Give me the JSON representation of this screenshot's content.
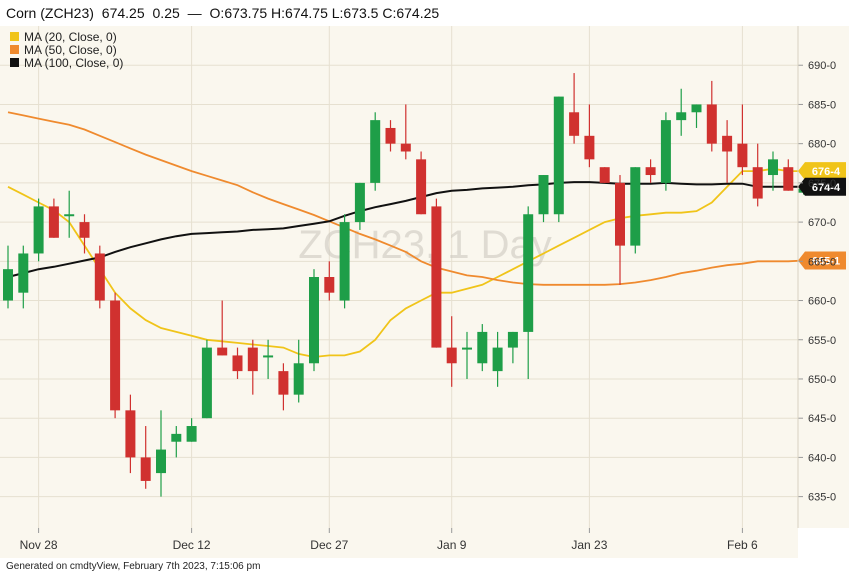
{
  "header": {
    "symbol": "Corn (ZCH23)",
    "last": "674.25",
    "change": "0.25",
    "separator": "—",
    "ohlc": "O:673.75 H:674.75 L:673.5 C:674.25"
  },
  "footer": {
    "generated": "Generated on cmdtyView, February 7th 2023, 7:15:06 pm"
  },
  "watermark": "ZCH23, 1 Day",
  "colors": {
    "plot_bg": "#faf7ee",
    "up": "#1e9e48",
    "down": "#d0312f",
    "ma20": "#f0c419",
    "ma50": "#ef8a2e",
    "ma100": "#111111",
    "grid": "#e6e0d0"
  },
  "chart_data": {
    "type": "candlestick",
    "title": "Corn (ZCH23)",
    "ylim": [
      631,
      695
    ],
    "y_ticks": [
      635,
      640,
      645,
      650,
      655,
      660,
      665,
      670,
      675,
      680,
      685,
      690
    ],
    "y_tick_labels": [
      "635-0",
      "640-0",
      "645-0",
      "650-0",
      "655-0",
      "660-0",
      "665-0",
      "670-0",
      "675-0",
      "680-0",
      "685-0",
      "690-0"
    ],
    "x_ticks": [
      {
        "label": "Nov 28",
        "index": 2
      },
      {
        "label": "Dec 12",
        "index": 12
      },
      {
        "label": "Dec 27",
        "index": 21
      },
      {
        "label": "Jan 9",
        "index": 29
      },
      {
        "label": "Jan 23",
        "index": 38
      },
      {
        "label": "Feb 6",
        "index": 48
      }
    ],
    "grid": true,
    "legend_placement": "top-left",
    "legend": [
      {
        "label": "MA (20, Close, 0)",
        "color": "#f0c419"
      },
      {
        "label": "MA (50, Close, 0)",
        "color": "#ef8a2e"
      },
      {
        "label": "MA (100, Close, 0)",
        "color": "#111111"
      }
    ],
    "price_tags": [
      {
        "label": "676-4",
        "value": 676.5,
        "color": "#f0c419"
      },
      {
        "label": "674-4",
        "value": 674.5,
        "color": "#111111"
      },
      {
        "label": "665-1",
        "value": 665.1,
        "color": "#ef8a2e"
      }
    ],
    "candles": [
      {
        "o": 660,
        "h": 667,
        "l": 659,
        "c": 664
      },
      {
        "o": 661,
        "h": 667,
        "l": 659,
        "c": 666
      },
      {
        "o": 666,
        "h": 673,
        "l": 665,
        "c": 672
      },
      {
        "o": 672,
        "h": 673,
        "l": 668,
        "c": 668
      },
      {
        "o": 671,
        "h": 674,
        "l": 668,
        "c": 671
      },
      {
        "o": 670,
        "h": 671,
        "l": 666,
        "c": 668
      },
      {
        "o": 666,
        "h": 667,
        "l": 659,
        "c": 660
      },
      {
        "o": 660,
        "h": 661,
        "l": 645,
        "c": 646
      },
      {
        "o": 646,
        "h": 648,
        "l": 638,
        "c": 640
      },
      {
        "o": 640,
        "h": 644,
        "l": 636,
        "c": 637
      },
      {
        "o": 638,
        "h": 646,
        "l": 635,
        "c": 641
      },
      {
        "o": 642,
        "h": 644,
        "l": 640,
        "c": 643
      },
      {
        "o": 642,
        "h": 645,
        "l": 642,
        "c": 644
      },
      {
        "o": 645,
        "h": 655,
        "l": 645,
        "c": 654
      },
      {
        "o": 654,
        "h": 660,
        "l": 653,
        "c": 653
      },
      {
        "o": 653,
        "h": 654,
        "l": 650,
        "c": 651
      },
      {
        "o": 654,
        "h": 655,
        "l": 648,
        "c": 651
      },
      {
        "o": 653,
        "h": 655,
        "l": 650,
        "c": 653
      },
      {
        "o": 651,
        "h": 652,
        "l": 646,
        "c": 648
      },
      {
        "o": 648,
        "h": 655,
        "l": 647,
        "c": 652
      },
      {
        "o": 652,
        "h": 664,
        "l": 651,
        "c": 663
      },
      {
        "o": 663,
        "h": 665,
        "l": 660,
        "c": 661
      },
      {
        "o": 660,
        "h": 671,
        "l": 659,
        "c": 670
      },
      {
        "o": 670,
        "h": 675,
        "l": 669,
        "c": 675
      },
      {
        "o": 675,
        "h": 684,
        "l": 674,
        "c": 683
      },
      {
        "o": 682,
        "h": 683,
        "l": 679,
        "c": 680
      },
      {
        "o": 680,
        "h": 685,
        "l": 678,
        "c": 679
      },
      {
        "o": 678,
        "h": 679,
        "l": 671,
        "c": 671
      },
      {
        "o": 672,
        "h": 673,
        "l": 654,
        "c": 654
      },
      {
        "o": 654,
        "h": 658,
        "l": 649,
        "c": 652
      },
      {
        "o": 654,
        "h": 656,
        "l": 650,
        "c": 654
      },
      {
        "o": 652,
        "h": 657,
        "l": 651,
        "c": 656
      },
      {
        "o": 651,
        "h": 656,
        "l": 649,
        "c": 654
      },
      {
        "o": 654,
        "h": 656,
        "l": 652,
        "c": 656
      },
      {
        "o": 656,
        "h": 672,
        "l": 650,
        "c": 671
      },
      {
        "o": 671,
        "h": 676,
        "l": 670,
        "c": 676
      },
      {
        "o": 671,
        "h": 686,
        "l": 670,
        "c": 686
      },
      {
        "o": 684,
        "h": 689,
        "l": 680,
        "c": 681
      },
      {
        "o": 681,
        "h": 685,
        "l": 677,
        "c": 678
      },
      {
        "o": 677,
        "h": 677,
        "l": 675,
        "c": 675
      },
      {
        "o": 675,
        "h": 676,
        "l": 662,
        "c": 667
      },
      {
        "o": 667,
        "h": 677,
        "l": 666,
        "c": 677
      },
      {
        "o": 677,
        "h": 678,
        "l": 675,
        "c": 676
      },
      {
        "o": 675,
        "h": 684,
        "l": 674,
        "c": 683
      },
      {
        "o": 683,
        "h": 687,
        "l": 681,
        "c": 684
      },
      {
        "o": 684,
        "h": 685,
        "l": 682,
        "c": 685
      },
      {
        "o": 685,
        "h": 688,
        "l": 679,
        "c": 680
      },
      {
        "o": 681,
        "h": 683,
        "l": 675,
        "c": 679
      },
      {
        "o": 680,
        "h": 685,
        "l": 676,
        "c": 677
      },
      {
        "o": 677,
        "h": 680,
        "l": 672,
        "c": 673
      },
      {
        "o": 676,
        "h": 679,
        "l": 674,
        "c": 678
      },
      {
        "o": 677,
        "h": 678,
        "l": 674,
        "c": 674
      },
      {
        "o": 673.75,
        "h": 674.75,
        "l": 673.5,
        "c": 674.25
      }
    ],
    "series": [
      {
        "name": "MA (20, Close, 0)",
        "values": [
          674.5,
          673.5,
          672.5,
          671.5,
          670,
          667,
          664,
          661,
          659,
          657.5,
          656.5,
          656,
          655.5,
          655,
          654.8,
          654.6,
          654.4,
          654.2,
          654,
          653.2,
          652.8,
          653,
          653,
          653.5,
          655,
          657.5,
          659,
          660,
          661,
          661,
          661.5,
          662,
          663,
          664,
          665,
          666,
          667,
          668,
          669,
          670,
          670.5,
          670.8,
          671,
          671.2,
          671.2,
          671.4,
          672.5,
          674.5,
          676.5,
          676.5,
          676.8,
          676.5,
          676.5
        ]
      },
      {
        "name": "MA (50, Close, 0)",
        "values": [
          684,
          683.6,
          683.2,
          682.8,
          682.4,
          681.8,
          681,
          680.2,
          679.4,
          678.6,
          677.9,
          677.2,
          676.5,
          675.9,
          675.3,
          674.7,
          673.8,
          673,
          672.3,
          671.6,
          670.9,
          670.1,
          669.3,
          668.5,
          667.8,
          667,
          666.2,
          665,
          664.2,
          663.7,
          663.2,
          663,
          662.6,
          662.3,
          662.1,
          662,
          662,
          662,
          662,
          662,
          662.1,
          662.3,
          662.6,
          663,
          663.5,
          663.8,
          664.2,
          664.5,
          664.7,
          665,
          665,
          665,
          665.1
        ]
      },
      {
        "name": "MA (100, Close, 0)",
        "values": [
          663,
          663.5,
          664,
          664.3,
          664.7,
          665.1,
          665.5,
          666.2,
          666.8,
          667.3,
          667.8,
          668.2,
          668.5,
          668.6,
          668.7,
          668.8,
          669,
          669.1,
          669.2,
          669.5,
          669.8,
          670.1,
          670.8,
          671.4,
          671.9,
          672.3,
          672.7,
          673.2,
          673.7,
          674,
          674.1,
          674.3,
          674.4,
          674.5,
          674.7,
          674.8,
          675,
          675.1,
          675.1,
          675,
          674.9,
          674.9,
          674.9,
          675,
          674.9,
          674.8,
          674.8,
          674.9,
          674.9,
          674.5,
          674.5,
          674.5,
          674.5
        ]
      }
    ]
  }
}
